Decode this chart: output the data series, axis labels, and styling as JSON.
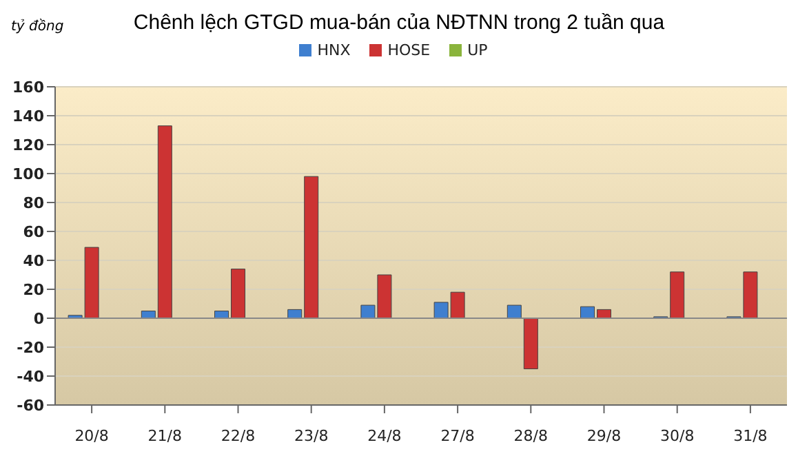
{
  "chart_data": {
    "type": "bar",
    "title": "Chênh lệch GTGD mua-bán của NĐTNN trong 2 tuần qua",
    "ylabel": "tỷ đồng",
    "categories": [
      "20/8",
      "21/8",
      "22/8",
      "23/8",
      "24/8",
      "27/8",
      "28/8",
      "29/8",
      "30/8",
      "31/8"
    ],
    "series": [
      {
        "name": "HNX",
        "color": "#3f7fcf",
        "values": [
          2,
          5,
          5,
          6,
          9,
          11,
          9,
          8,
          1,
          1
        ]
      },
      {
        "name": "HOSE",
        "color": "#cc3333",
        "values": [
          49,
          133,
          34,
          98,
          30,
          18,
          -35,
          6,
          32,
          32
        ]
      },
      {
        "name": "UP",
        "color": "#8ab43c",
        "values": [
          0,
          0,
          0,
          0,
          0,
          0,
          0,
          0,
          0,
          0
        ]
      }
    ],
    "ylim": [
      -60,
      160
    ],
    "yticks": [
      -60,
      -40,
      -20,
      0,
      20,
      40,
      60,
      80,
      100,
      120,
      140,
      160
    ],
    "grid": "y",
    "legend": "top"
  }
}
